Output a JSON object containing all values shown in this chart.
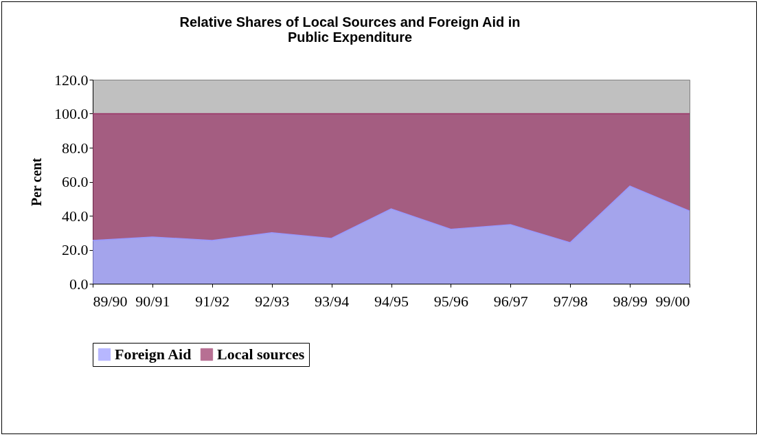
{
  "chart_data": {
    "type": "area",
    "title": [
      "Relative Shares of Local Sources and Foreign Aid in",
      "Public Expenditure"
    ],
    "ylabel": "Per cent",
    "stacked": true,
    "legend": "bottom",
    "grid": false,
    "categories": [
      "89/90",
      "90/91",
      "91/92",
      "92/93",
      "93/94",
      "94/95",
      "95/96",
      "96/97",
      "97/98",
      "98/99",
      "99/00"
    ],
    "ylim": [
      0,
      120
    ],
    "yticks": [
      {
        "value": 0,
        "label": "0.0"
      },
      {
        "value": 20,
        "label": "20.0"
      },
      {
        "value": 40,
        "label": "40.0"
      },
      {
        "value": 60,
        "label": "60.0"
      },
      {
        "value": 80,
        "label": "80.0"
      },
      {
        "value": 100,
        "label": "100.0"
      },
      {
        "value": 120,
        "label": "120.0"
      }
    ],
    "series": [
      {
        "name": "Foreign Aid",
        "color": "#9999ff",
        "values": [
          25.5,
          27.5,
          25.5,
          30,
          26.7,
          44,
          32,
          34.7,
          24.2,
          57.4,
          42.8
        ]
      },
      {
        "name": "Local sources",
        "color": "#993366",
        "values": [
          74.5,
          72.5,
          74.5,
          70,
          73.3,
          56,
          68,
          65.3,
          75.8,
          42.6,
          57.2
        ]
      }
    ]
  }
}
